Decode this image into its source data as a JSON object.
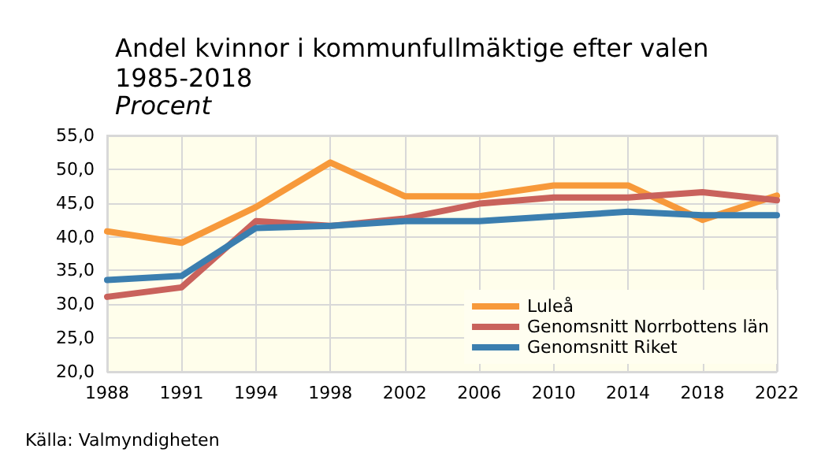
{
  "chart_data": {
    "type": "line",
    "title": "Andel kvinnor i kommunfullmäktige efter valen\n1985-2018",
    "subtitle": "Procent",
    "categories": [
      "1988",
      "1991",
      "1994",
      "1998",
      "2002",
      "2006",
      "2010",
      "2014",
      "2018",
      "2022"
    ],
    "series": [
      {
        "name": "Luleå",
        "color": "#f7993a",
        "values": [
          40.8,
          39.1,
          44.4,
          51.0,
          46.0,
          46.0,
          47.6,
          47.6,
          42.5,
          46.1
        ]
      },
      {
        "name": "Genomsnitt Norrbottens län",
        "color": "#c9625c",
        "values": [
          31.1,
          32.5,
          42.3,
          41.6,
          42.7,
          44.9,
          45.8,
          45.8,
          46.6,
          45.4
        ]
      },
      {
        "name": "Genomsnitt Riket",
        "color": "#3b7eaf",
        "values": [
          33.6,
          34.2,
          41.3,
          41.6,
          42.3,
          42.3,
          43.0,
          43.7,
          43.2,
          43.2
        ]
      }
    ],
    "ylim": [
      20,
      55
    ],
    "yticks": [
      {
        "value": 20,
        "label": "20,0"
      },
      {
        "value": 25,
        "label": "25,0"
      },
      {
        "value": 30,
        "label": "30,0"
      },
      {
        "value": 35,
        "label": "35,0"
      },
      {
        "value": 40,
        "label": "40,0"
      },
      {
        "value": 45,
        "label": "45,0"
      },
      {
        "value": 50,
        "label": "50,0"
      },
      {
        "value": 55,
        "label": "55,0"
      }
    ],
    "grid": true,
    "legend": "bottom right",
    "marker": "none",
    "line_style": "solid",
    "annotations": [
      "Källa: Valmyndigheten"
    ]
  }
}
